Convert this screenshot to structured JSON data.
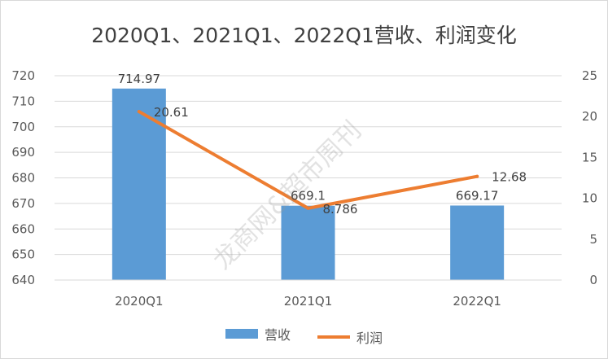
{
  "chart_data": {
    "type": "bar",
    "title": "2020Q1、2021Q1、2022Q1营收、利润变化",
    "categories": [
      "2020Q1",
      "2021Q1",
      "2022Q1"
    ],
    "series": [
      {
        "name": "营收",
        "type": "bar",
        "axis": "left",
        "values": [
          714.97,
          669.1,
          669.17
        ],
        "labels": [
          "714.97",
          "669.1",
          "669.17"
        ]
      },
      {
        "name": "利润",
        "type": "line",
        "axis": "right",
        "values": [
          20.61,
          8.786,
          12.68
        ],
        "labels": [
          "20.61",
          "8.786",
          "12.68"
        ]
      }
    ],
    "ylim_left": [
      640,
      720
    ],
    "yticks_left": [
      640,
      650,
      660,
      670,
      680,
      690,
      700,
      710,
      720
    ],
    "ylim_right": [
      0,
      25
    ],
    "yticks_right": [
      0,
      5,
      10,
      15,
      20,
      25
    ],
    "grid": true,
    "legend_position": "bottom",
    "colors": {
      "bar": "#5b9bd5",
      "line": "#ed7d31",
      "grid": "#d9d9d9",
      "text": "#595959"
    }
  },
  "watermark": "龙商网&超市周刊"
}
